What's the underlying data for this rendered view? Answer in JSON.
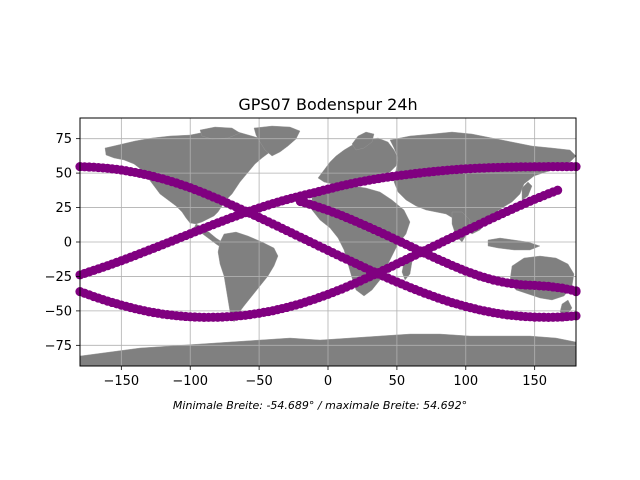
{
  "chart_data": {
    "type": "scatter",
    "title": "GPS07 Bodenspur 24h",
    "xlabel": "",
    "ylabel": "",
    "footnote": "Minimale Breite: -54.689° / maximale Breite: 54.692°",
    "xlim": [
      -180,
      180
    ],
    "ylim": [
      -90,
      90
    ],
    "x_ticks": [
      -150,
      -100,
      -50,
      0,
      50,
      100,
      150
    ],
    "y_ticks": [
      -75,
      -50,
      -25,
      0,
      25,
      50,
      75
    ],
    "grid": true,
    "background_map": "world-land-gray",
    "colors": {
      "points": "#800080",
      "land": "#808080",
      "grid": "#b0b0b0"
    },
    "series": [
      {
        "x": [
          -180,
          -170,
          -160,
          -150,
          -140,
          -130,
          -120,
          -110,
          -100,
          -90,
          -80,
          -70,
          -60,
          -50,
          -40,
          -30,
          -20,
          -10,
          0,
          10,
          20,
          30,
          40,
          50,
          60,
          70,
          80,
          90,
          100,
          110,
          120,
          130,
          140,
          150,
          160,
          170,
          180
        ],
        "y": [
          54.7,
          54.3,
          53.5,
          52.3,
          50.5,
          48.4,
          45.8,
          42.8,
          39.4,
          35.5,
          31.3,
          26.9,
          22.4,
          17.8,
          13.1,
          8.3,
          3.5,
          -1.3,
          -6.1,
          -10.9,
          -15.5,
          -20.2,
          -24.7,
          -29.0,
          -33.2,
          -37.1,
          -40.7,
          -44.0,
          -46.8,
          -49.3,
          -51.3,
          -52.9,
          -53.9,
          -54.5,
          -54.7,
          -54.4,
          -53.6
        ]
      },
      {
        "x": [
          -180,
          -170,
          -160,
          -150,
          -140,
          -130,
          -120,
          -110,
          -100,
          -90,
          -80,
          -70,
          -60,
          -50,
          -40,
          -30,
          -20,
          -10,
          0,
          10,
          20,
          30,
          40,
          50,
          60,
          70,
          80,
          90,
          100,
          110,
          120,
          130,
          140,
          150,
          160,
          170,
          180
        ],
        "y": [
          -36.0,
          -39.6,
          -42.9,
          -45.8,
          -48.4,
          -50.6,
          -52.3,
          -53.5,
          -54.3,
          -54.7,
          -54.6,
          -54.1,
          -53.2,
          -51.7,
          -49.9,
          -47.5,
          -44.8,
          -41.6,
          -38.0,
          -34.1,
          -29.8,
          -25.3,
          -20.7,
          -15.9,
          -11.1,
          -6.3,
          -1.5,
          3.3,
          8.1,
          12.9,
          17.6,
          22.2,
          26.7,
          31.0,
          35.0,
          38.8,
          -36.0
        ]
      },
      {
        "x": [
          -180,
          -170,
          -160,
          -150,
          -140,
          -130,
          -120,
          -110,
          -100,
          -90,
          -80,
          -70,
          -60,
          -50,
          -40,
          -30,
          -20,
          -10,
          0,
          10,
          20,
          30,
          40,
          50,
          60,
          70,
          80,
          90,
          100,
          110,
          120,
          130,
          140,
          150,
          160,
          170,
          180
        ],
        "y": [
          -23.9,
          -20.6,
          -17.2,
          -13.6,
          -9.8,
          -5.9,
          -2.0,
          2.0,
          6.0,
          10.0,
          13.9,
          17.7,
          21.3,
          24.7,
          27.9,
          30.8,
          33.4,
          35.8,
          38.4,
          40.8,
          43.0,
          44.9,
          46.6,
          48.0,
          49.3,
          50.5,
          51.5,
          52.4,
          53.1,
          53.6,
          54.0,
          54.3,
          54.5,
          54.6,
          54.7,
          54.7,
          54.7
        ]
      },
      {
        "x": [
          -20,
          -10,
          0,
          10,
          20,
          30,
          40,
          50,
          60,
          70,
          80,
          90,
          100,
          110,
          120,
          130,
          140,
          150,
          160,
          170,
          180
        ],
        "y": [
          29.4,
          26.4,
          23.0,
          19.2,
          15.0,
          10.6,
          6.1,
          1.4,
          -3.3,
          -8.0,
          -12.6,
          -17.0,
          -21.1,
          -24.7,
          -27.6,
          -29.7,
          -31.0,
          -31.5,
          -32.2,
          -33.5,
          -35.5
        ]
      }
    ]
  }
}
